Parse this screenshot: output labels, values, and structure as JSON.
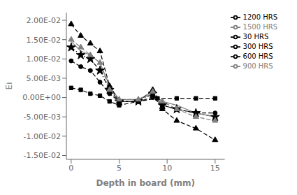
{
  "chart_data": {
    "type": "line",
    "xlabel": "Depth in board (mm)",
    "ylabel": "Ei",
    "xlim": [
      -0.5,
      16
    ],
    "ylim": [
      -0.016,
      0.022
    ],
    "xticks": [
      0,
      5,
      10,
      15
    ],
    "yticks": [
      {
        "value": -0.015,
        "label": "-1.50E-02"
      },
      {
        "value": -0.01,
        "label": "-1.00E-02"
      },
      {
        "value": -0.005,
        "label": "-5.00E-03"
      },
      {
        "value": 0.0,
        "label": "0.00E+00"
      },
      {
        "value": 0.005,
        "label": "5.00E-03"
      },
      {
        "value": 0.01,
        "label": "1.00E-02"
      },
      {
        "value": 0.015,
        "label": "1.50E-02"
      },
      {
        "value": 0.02,
        "label": "2.00E-02"
      }
    ],
    "grid": false,
    "legend": "upper right",
    "series": [
      {
        "name": "30 HRS",
        "color": "black",
        "marker": "square",
        "line_style": "dashed",
        "x": [
          0,
          1,
          2,
          3,
          4,
          5,
          7,
          9,
          11,
          13,
          15
        ],
        "values": [
          0.0025,
          0.002,
          0.001,
          0.0005,
          -0.001,
          -0.002,
          -0.001,
          -0.0002,
          -0.0002,
          -0.0002,
          -0.0002
        ]
      },
      {
        "name": "300 HRS",
        "color": "black",
        "marker": "circle",
        "line_style": "dashed",
        "x": [
          0,
          1,
          2,
          3,
          4,
          5,
          7,
          8.5,
          9.5,
          11,
          13,
          15
        ],
        "values": [
          0.0095,
          0.008,
          0.007,
          0.004,
          0.001,
          -0.001,
          -0.001,
          0.0,
          -0.002,
          -0.003,
          -0.004,
          -0.004
        ]
      },
      {
        "name": "600 HRS",
        "color": "black",
        "marker": "star",
        "line_style": "dashdot",
        "x": [
          0,
          1,
          2,
          3,
          4,
          5,
          7,
          8.5,
          9.5,
          11,
          13,
          15
        ],
        "values": [
          0.013,
          0.011,
          0.01,
          0.007,
          0.002,
          -0.001,
          -0.001,
          0.001,
          -0.002,
          -0.003,
          -0.004,
          -0.005
        ]
      },
      {
        "name": "900 HRS",
        "color": "gray",
        "marker": null,
        "line_style": "solid",
        "x": [
          0,
          1,
          2,
          3,
          4,
          5,
          7,
          8.5,
          9.5,
          11,
          13,
          15
        ],
        "values": [
          0.0145,
          0.012,
          0.011,
          0.009,
          0.003,
          -0.0005,
          -0.0005,
          0.001,
          -0.001,
          -0.002,
          -0.004,
          -0.005
        ]
      },
      {
        "name": "1200 HRS",
        "color": "black",
        "marker": "triangle",
        "line_style": "dashed",
        "x": [
          0,
          1,
          2,
          3,
          4,
          5,
          7,
          8.5,
          9.5,
          11,
          13,
          15
        ],
        "values": [
          0.019,
          0.016,
          0.014,
          0.012,
          0.003,
          -0.001,
          -0.001,
          0.002,
          -0.003,
          -0.006,
          -0.008,
          -0.011
        ]
      },
      {
        "name": "1500 HRS",
        "color": "gray",
        "marker": "triangle",
        "line_style": "dashed",
        "x": [
          0,
          1,
          2,
          3,
          4,
          5,
          7,
          8.5,
          9.5,
          11,
          13,
          15
        ],
        "values": [
          0.015,
          0.013,
          0.011,
          0.009,
          0.002,
          -0.0005,
          -0.0005,
          0.0015,
          -0.001,
          -0.003,
          -0.005,
          -0.006
        ]
      }
    ]
  }
}
